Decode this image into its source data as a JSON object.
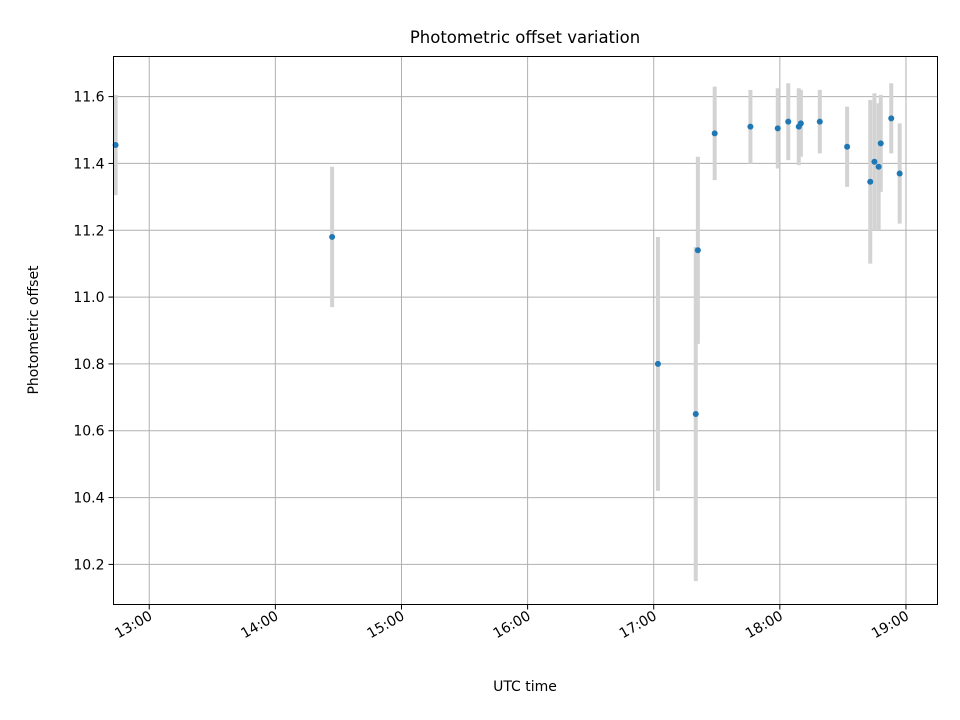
{
  "chart_data": {
    "type": "scatter",
    "title": "Photometric offset variation",
    "xlabel": "UTC time",
    "ylabel": "Photometric offset",
    "xlim": [
      "12:43",
      "19:15"
    ],
    "ylim": [
      10.08,
      11.72
    ],
    "x_ticks": [
      "13:00",
      "14:00",
      "15:00",
      "16:00",
      "17:00",
      "18:00",
      "19:00"
    ],
    "y_ticks": [
      "10.2",
      "10.4",
      "10.6",
      "10.8",
      "11.0",
      "11.2",
      "11.4",
      "11.6"
    ],
    "grid": true,
    "point_color": "#1f77b4",
    "errorbar_color": "#d3d3d3",
    "points": [
      {
        "t": "12:44",
        "y": 11.455,
        "err": 0.15
      },
      {
        "t": "14:27",
        "y": 11.18,
        "err": 0.21
      },
      {
        "t": "17:02",
        "y": 10.8,
        "err": 0.38
      },
      {
        "t": "17:20",
        "y": 10.65,
        "err": 0.5
      },
      {
        "t": "17:21",
        "y": 11.14,
        "err": 0.28
      },
      {
        "t": "17:29",
        "y": 11.49,
        "err": 0.14
      },
      {
        "t": "17:46",
        "y": 11.51,
        "err": 0.11
      },
      {
        "t": "17:59",
        "y": 11.505,
        "err": 0.12
      },
      {
        "t": "18:04",
        "y": 11.525,
        "err": 0.115
      },
      {
        "t": "18:09",
        "y": 11.51,
        "err": 0.115
      },
      {
        "t": "18:10",
        "y": 11.52,
        "err": 0.1
      },
      {
        "t": "18:19",
        "y": 11.525,
        "err": 0.095
      },
      {
        "t": "18:32",
        "y": 11.45,
        "err": 0.12
      },
      {
        "t": "18:43",
        "y": 11.345,
        "err": 0.245
      },
      {
        "t": "18:45",
        "y": 11.405,
        "err": 0.205
      },
      {
        "t": "18:47",
        "y": 11.39,
        "err": 0.19
      },
      {
        "t": "18:48",
        "y": 11.46,
        "err": 0.145
      },
      {
        "t": "18:53",
        "y": 11.535,
        "err": 0.105
      },
      {
        "t": "18:57",
        "y": 11.37,
        "err": 0.15
      }
    ]
  }
}
